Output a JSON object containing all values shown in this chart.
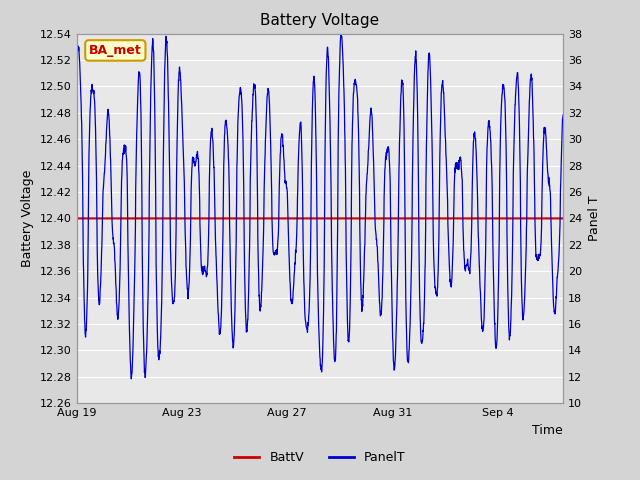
{
  "title": "Battery Voltage",
  "xlabel": "Time",
  "ylabel_left": "Battery Voltage",
  "ylabel_right": "Panel T",
  "ylim_left": [
    12.26,
    12.54
  ],
  "ylim_right": [
    10,
    38
  ],
  "yticks_left": [
    12.26,
    12.28,
    12.3,
    12.32,
    12.34,
    12.36,
    12.38,
    12.4,
    12.42,
    12.44,
    12.46,
    12.48,
    12.5,
    12.52,
    12.54
  ],
  "yticks_right": [
    10,
    12,
    14,
    16,
    18,
    20,
    22,
    24,
    26,
    28,
    30,
    32,
    34,
    36,
    38
  ],
  "batt_v_value": 12.4,
  "batt_color": "#cc0000",
  "panel_color": "#0000cc",
  "fig_bg_color": "#d4d4d4",
  "plot_bg_color": "#e8e8e8",
  "grid_color": "#ffffff",
  "annotation_text": "BA_met",
  "annotation_bg": "#ffffcc",
  "annotation_border": "#cc9900",
  "annotation_text_color": "#cc0000",
  "xtick_labels": [
    "Aug 19",
    "Aug 23",
    "Aug 27",
    "Aug 31",
    "Sep 4"
  ],
  "xtick_days_offset": [
    0,
    4,
    8,
    12,
    16
  ],
  "xlim": [
    0,
    18.5
  ]
}
